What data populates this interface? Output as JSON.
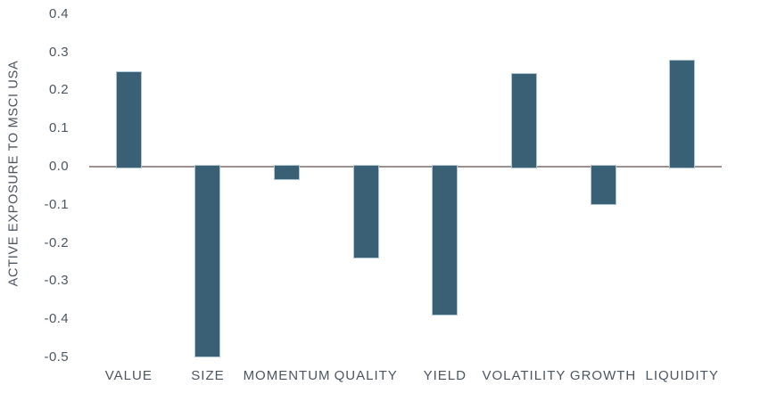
{
  "chart_data": {
    "type": "bar",
    "title": "",
    "categories": [
      "VALUE",
      "SIZE",
      "MOMENTUM",
      "QUALITY",
      "YIELD",
      "VOLATILITY",
      "GROWTH",
      "LIQUIDITY"
    ],
    "values": [
      0.25,
      -0.5,
      -0.035,
      -0.24,
      -0.39,
      0.245,
      -0.1,
      0.28
    ],
    "xlabel": "",
    "ylabel": "ACTIVE EXPOSURE TO MSCI USA",
    "yticks": [
      0.4,
      0.3,
      0.2,
      0.1,
      0,
      -0.1,
      -0.2,
      -0.3,
      -0.4,
      -0.5
    ],
    "ylim": [
      -0.5,
      0.4
    ],
    "grid": false,
    "legend": false,
    "colors": {
      "bar_fill": "#3A6076",
      "bar_border": "#AFC6D3",
      "axis_line": "#9C918D",
      "label_text": "#4C5661"
    }
  }
}
